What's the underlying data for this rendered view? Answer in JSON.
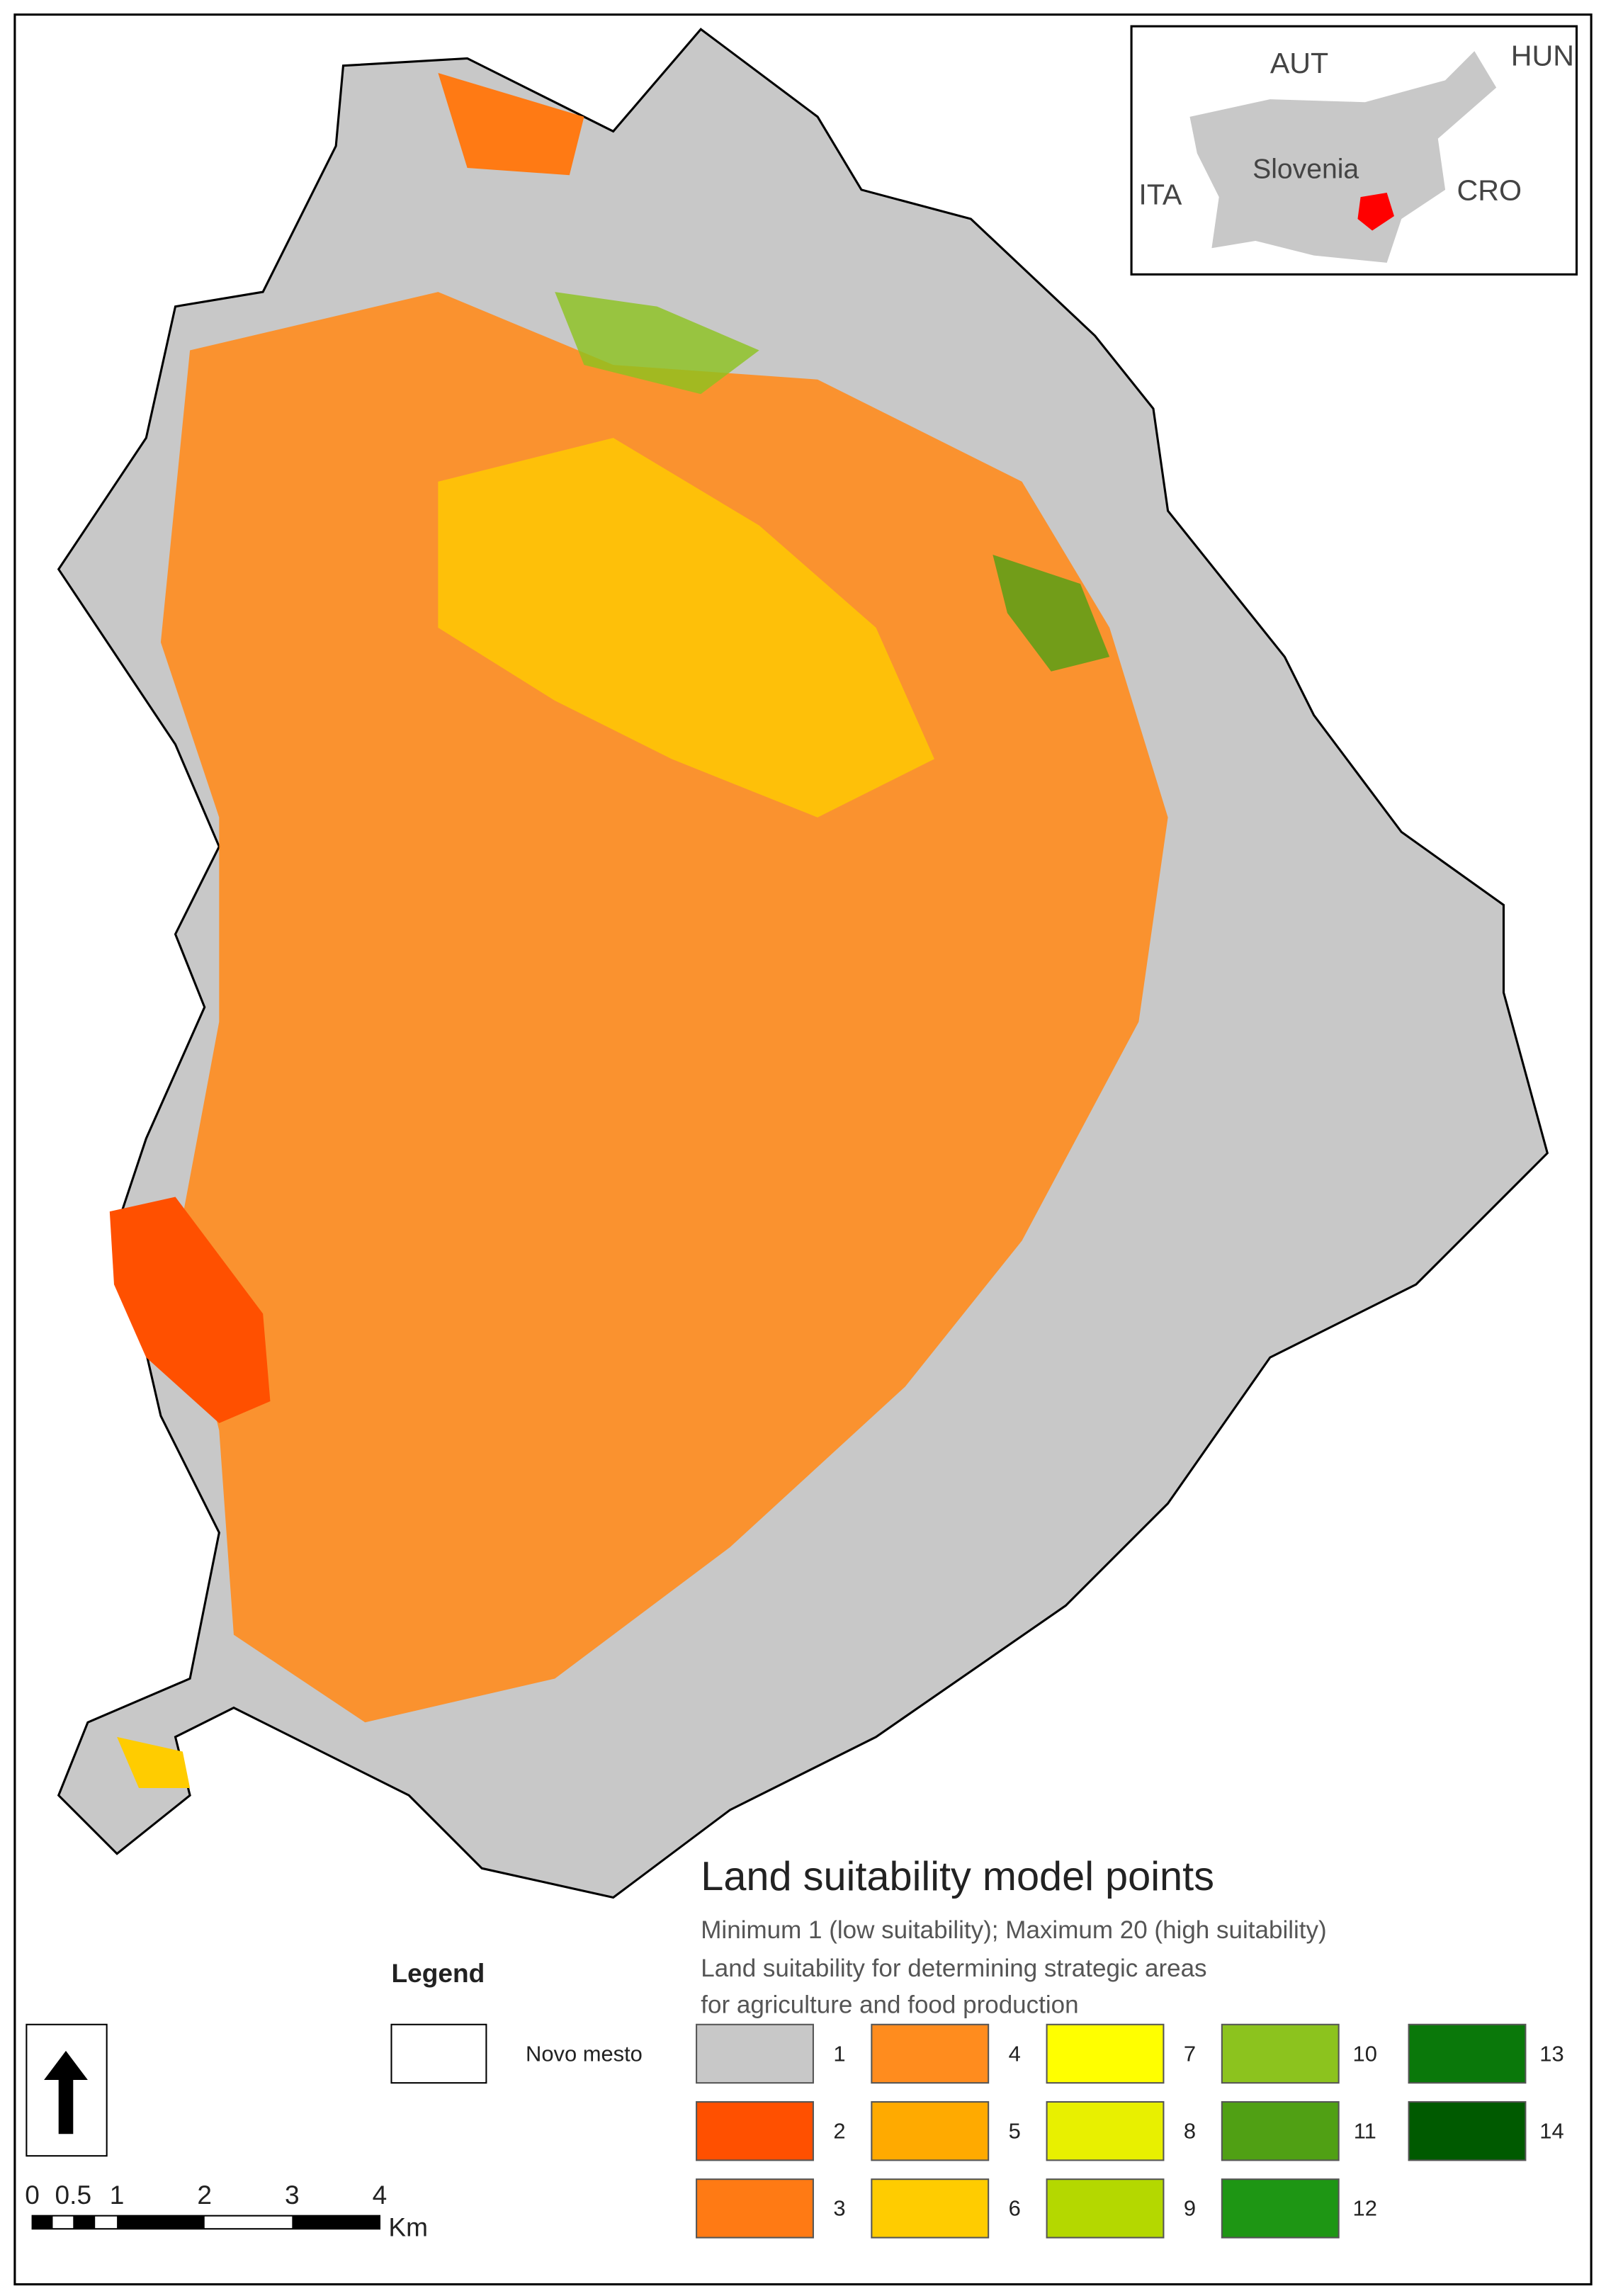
{
  "inset": {
    "labels": [
      "AUT",
      "HUN",
      "ITA",
      "CRO",
      "Slovenia"
    ]
  },
  "legend": {
    "heading": "Legend",
    "boundary_label": "Novo mesto",
    "title": "Land suitability model points",
    "subtitle": "Minimum 1 (low suitability); Maximum 20 (high suitability)",
    "description": [
      "Land suitability for determining strategic areas",
      "for agriculture and food production"
    ],
    "items": [
      {
        "label": "1",
        "color": "#c8c8c8"
      },
      {
        "label": "2",
        "color": "#ff5000"
      },
      {
        "label": "3",
        "color": "#ff7a14"
      },
      {
        "label": "4",
        "color": "#ff8c1e"
      },
      {
        "label": "5",
        "color": "#ffaa00"
      },
      {
        "label": "6",
        "color": "#ffcc00"
      },
      {
        "label": "7",
        "color": "#ffff00"
      },
      {
        "label": "8",
        "color": "#e8f000"
      },
      {
        "label": "9",
        "color": "#b4d800"
      },
      {
        "label": "10",
        "color": "#8cc31e"
      },
      {
        "label": "11",
        "color": "#50a014"
      },
      {
        "label": "12",
        "color": "#1e9614"
      },
      {
        "label": "13",
        "color": "#0a780a"
      },
      {
        "label": "14",
        "color": "#005a00"
      }
    ]
  },
  "scale_bar": {
    "labels": [
      "0",
      "0.5",
      "1",
      "2",
      "3",
      "4"
    ],
    "unit": "Km"
  }
}
